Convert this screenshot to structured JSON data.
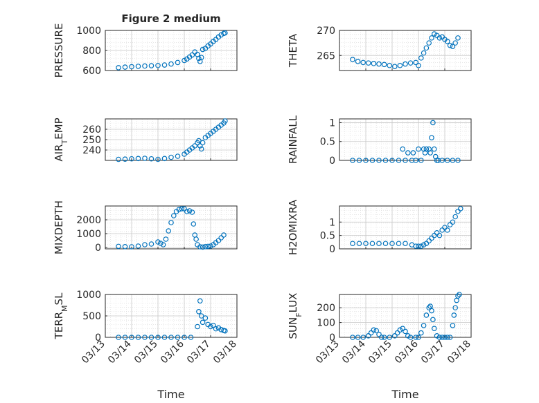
{
  "figure_title": "Figure 2 medium",
  "marker_color": "#0072BD",
  "grid": true,
  "minor_grid": true,
  "chart_data": [
    {
      "type": "scatter",
      "marker": "circle-open",
      "ylabel": "PRESSURE",
      "ylim": [
        600,
        1000
      ],
      "yticks": [
        600,
        800,
        1000
      ],
      "xlim": [
        0,
        5
      ],
      "xtick_labels": [
        "03/13",
        "03/14",
        "03/15",
        "03/16",
        "03/17",
        "03/18"
      ],
      "show_xticklabels": false,
      "xlabel": "",
      "x": [
        0.5,
        0.75,
        1.0,
        1.25,
        1.5,
        1.75,
        2.0,
        2.25,
        2.5,
        2.75,
        3.0,
        3.1,
        3.2,
        3.3,
        3.4,
        3.5,
        3.55,
        3.6,
        3.65,
        3.7,
        3.8,
        3.9,
        4.0,
        4.1,
        4.2,
        4.3,
        4.4,
        4.5,
        4.55
      ],
      "y": [
        628,
        634,
        638,
        642,
        645,
        648,
        650,
        655,
        665,
        680,
        700,
        715,
        735,
        755,
        785,
        760,
        720,
        690,
        730,
        810,
        820,
        845,
        865,
        890,
        910,
        935,
        955,
        970,
        975
      ]
    },
    {
      "type": "scatter",
      "marker": "circle-open",
      "ylabel": "THETA",
      "ylim": [
        262,
        270
      ],
      "yticks": [
        265,
        270
      ],
      "xlim": [
        0,
        5
      ],
      "xtick_labels": [
        "03/13",
        "03/14",
        "03/15",
        "03/16",
        "03/17",
        "03/18"
      ],
      "show_xticklabels": false,
      "xlabel": "",
      "x": [
        0.5,
        0.7,
        0.9,
        1.1,
        1.3,
        1.5,
        1.7,
        1.9,
        2.1,
        2.3,
        2.5,
        2.7,
        2.9,
        3.0,
        3.1,
        3.2,
        3.3,
        3.4,
        3.5,
        3.6,
        3.7,
        3.8,
        3.9,
        4.0,
        4.1,
        4.2,
        4.3,
        4.4,
        4.5
      ],
      "y": [
        264.2,
        263.8,
        263.6,
        263.5,
        263.4,
        263.3,
        263.2,
        263.0,
        262.8,
        263.0,
        263.3,
        263.5,
        263.6,
        263.0,
        264.5,
        265.5,
        266.5,
        267.5,
        268.5,
        269.3,
        269.0,
        268.5,
        268.7,
        268.2,
        267.8,
        267.0,
        266.8,
        267.5,
        268.5
      ]
    },
    {
      "type": "scatter",
      "marker": "circle-open",
      "ylabel": "AIR_TEMP",
      "ylim": [
        230,
        270
      ],
      "yticks": [
        240,
        250,
        260
      ],
      "xlim": [
        0,
        5
      ],
      "xtick_labels": [
        "03/13",
        "03/14",
        "03/15",
        "03/16",
        "03/17",
        "03/18"
      ],
      "show_xticklabels": false,
      "xlabel": "",
      "x": [
        0.5,
        0.75,
        1.0,
        1.25,
        1.5,
        1.75,
        2.0,
        2.25,
        2.5,
        2.75,
        3.0,
        3.1,
        3.2,
        3.3,
        3.4,
        3.5,
        3.55,
        3.6,
        3.65,
        3.7,
        3.8,
        3.9,
        4.0,
        4.1,
        4.2,
        4.3,
        4.4,
        4.5,
        4.55
      ],
      "y": [
        231,
        231.2,
        231.5,
        231.8,
        232,
        231.5,
        231,
        231.8,
        233,
        234,
        236,
        238,
        240,
        242,
        244,
        247,
        249,
        244,
        241,
        247,
        252,
        254,
        256,
        258,
        260,
        262,
        264,
        266,
        268
      ]
    },
    {
      "type": "scatter",
      "marker": "circle-open",
      "ylabel": "RAINFALL",
      "ylim": [
        0,
        1.1
      ],
      "yticks": [
        0,
        0.5,
        1
      ],
      "xlim": [
        0,
        5
      ],
      "xtick_labels": [
        "03/13",
        "03/14",
        "03/15",
        "03/16",
        "03/17",
        "03/18"
      ],
      "show_xticklabels": false,
      "xlabel": "",
      "x": [
        0.5,
        0.75,
        1.0,
        1.25,
        1.5,
        1.75,
        2.0,
        2.25,
        2.5,
        2.75,
        2.9,
        3.1,
        3.2,
        3.25,
        3.3,
        3.4,
        3.45,
        3.5,
        3.55,
        3.6,
        3.65,
        3.7,
        3.75,
        3.9,
        4.1,
        4.3,
        4.5,
        2.4,
        2.6,
        2.8,
        3.0
      ],
      "y": [
        0,
        0,
        0,
        0,
        0,
        0,
        0,
        0,
        0,
        0,
        0,
        0,
        0.3,
        0.2,
        0.3,
        0.3,
        0.2,
        0.6,
        1.0,
        0.3,
        0.1,
        0,
        0,
        0,
        0,
        0,
        0,
        0.3,
        0.2,
        0.2,
        0.3
      ]
    },
    {
      "type": "scatter",
      "marker": "circle-open",
      "ylabel": "MIXDEPTH",
      "ylim": [
        -100,
        3000
      ],
      "yticks": [
        0,
        1000,
        2000
      ],
      "xlim": [
        0,
        5
      ],
      "xtick_labels": [
        "03/13",
        "03/14",
        "03/15",
        "03/16",
        "03/17",
        "03/18"
      ],
      "show_xticklabels": false,
      "xlabel": "",
      "x": [
        0.5,
        0.75,
        1.0,
        1.25,
        1.5,
        1.75,
        2.0,
        2.1,
        2.2,
        2.3,
        2.4,
        2.5,
        2.6,
        2.7,
        2.8,
        2.9,
        3.0,
        3.1,
        3.2,
        3.3,
        3.35,
        3.4,
        3.45,
        3.5,
        3.6,
        3.7,
        3.8,
        3.9,
        4.0,
        4.1,
        4.2,
        4.3,
        4.4,
        4.5
      ],
      "y": [
        80,
        60,
        50,
        100,
        200,
        250,
        400,
        300,
        200,
        600,
        1200,
        1800,
        2300,
        2600,
        2750,
        2800,
        2800,
        2600,
        2650,
        2550,
        1700,
        900,
        600,
        200,
        50,
        30,
        60,
        80,
        100,
        200,
        350,
        500,
        700,
        900
      ]
    },
    {
      "type": "scatter",
      "marker": "circle-open",
      "ylabel": "H2OMIXRA",
      "ylim": [
        0,
        1.6
      ],
      "yticks": [
        0,
        0.5,
        1
      ],
      "xlim": [
        0,
        5
      ],
      "xtick_labels": [
        "03/13",
        "03/14",
        "03/15",
        "03/16",
        "03/17",
        "03/18"
      ],
      "show_xticklabels": false,
      "xlabel": "",
      "x": [
        0.5,
        0.75,
        1.0,
        1.25,
        1.5,
        1.75,
        2.0,
        2.25,
        2.5,
        2.75,
        2.9,
        3.0,
        3.1,
        3.2,
        3.3,
        3.4,
        3.5,
        3.6,
        3.7,
        3.8,
        3.9,
        4.0,
        4.1,
        4.2,
        4.3,
        4.4,
        4.5,
        4.6
      ],
      "y": [
        0.2,
        0.2,
        0.2,
        0.2,
        0.2,
        0.2,
        0.2,
        0.2,
        0.2,
        0.15,
        0.1,
        0.1,
        0.1,
        0.15,
        0.2,
        0.3,
        0.4,
        0.5,
        0.6,
        0.5,
        0.7,
        0.8,
        0.7,
        0.9,
        1.0,
        1.2,
        1.4,
        1.5
      ]
    },
    {
      "type": "scatter",
      "marker": "circle-open",
      "ylabel": "TERR_MSL",
      "ylim": [
        0,
        1000
      ],
      "yticks": [
        0,
        500,
        1000
      ],
      "xlim": [
        0,
        5
      ],
      "xtick_labels": [
        "03/13",
        "03/14",
        "03/15",
        "03/16",
        "03/17",
        "03/18"
      ],
      "show_xticklabels": true,
      "xlabel": "Time",
      "x": [
        0.5,
        0.75,
        1.0,
        1.25,
        1.5,
        1.75,
        2.0,
        2.25,
        2.5,
        2.75,
        3.0,
        3.25,
        3.5,
        3.55,
        3.6,
        3.65,
        3.7,
        3.8,
        3.9,
        4.0,
        4.1,
        4.2,
        4.3,
        4.4,
        4.5,
        4.55
      ],
      "y": [
        0,
        0,
        0,
        0,
        0,
        0,
        0,
        0,
        0,
        0,
        0,
        0,
        250,
        600,
        850,
        500,
        350,
        450,
        300,
        250,
        280,
        200,
        220,
        180,
        160,
        150
      ]
    },
    {
      "type": "scatter",
      "marker": "circle-open",
      "ylabel": "SUN_FLUX",
      "ylim": [
        0,
        290
      ],
      "yticks": [
        0,
        100,
        200
      ],
      "xlim": [
        0,
        5
      ],
      "xtick_labels": [
        "03/13",
        "03/14",
        "03/15",
        "03/16",
        "03/17",
        "03/18"
      ],
      "show_xticklabels": true,
      "xlabel": "Time",
      "x": [
        0.5,
        0.7,
        0.9,
        1.1,
        1.2,
        1.3,
        1.4,
        1.5,
        1.6,
        1.7,
        1.9,
        2.1,
        2.2,
        2.3,
        2.4,
        2.5,
        2.6,
        2.7,
        2.9,
        3.0,
        3.1,
        3.2,
        3.3,
        3.4,
        3.45,
        3.5,
        3.55,
        3.6,
        3.7,
        3.8,
        3.9,
        4.0,
        4.1,
        4.2,
        4.3,
        4.35,
        4.4,
        4.45,
        4.5,
        4.55
      ],
      "y": [
        0,
        0,
        0,
        10,
        30,
        50,
        45,
        20,
        0,
        0,
        0,
        10,
        30,
        50,
        60,
        40,
        10,
        0,
        0,
        0,
        30,
        80,
        150,
        200,
        210,
        180,
        120,
        60,
        10,
        0,
        0,
        0,
        0,
        0,
        80,
        150,
        200,
        250,
        280,
        290
      ]
    }
  ]
}
